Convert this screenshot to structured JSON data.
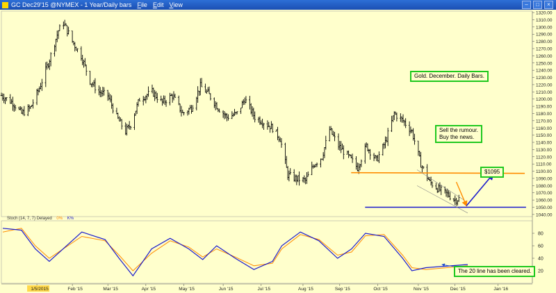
{
  "titlebar": {
    "title": "GC Dec29'15 @NYMEX - 1 Year/Daily bars",
    "menu": [
      "File",
      "Edit",
      "View"
    ],
    "bg": "#1b4fb3"
  },
  "indicator_header": {
    "text": "Stoch (14, 7, 7) Delayed",
    "k_label": "0%",
    "d_label": "K%"
  },
  "annotations": {
    "gold": "Gold. December. Daily Bars.",
    "sell_line1": "Sell the rumour.",
    "sell_line2": "Buy the news.",
    "price": "$1095",
    "cleared": "The 20 line has been cleared."
  },
  "colors": {
    "background": "#ffffcc",
    "bars": "#000000",
    "orange_line": "#ff8c00",
    "blue_line": "#1a1acc",
    "note_border": "#1ec81e",
    "k_line": "#1a1acc",
    "d_line": "#ff8c00"
  },
  "chart_data": {
    "type": "ohlc",
    "price_ylim": [
      1037,
      1322
    ],
    "price_ticks": [
      1040,
      1050,
      1060,
      1070,
      1080,
      1090,
      1100,
      1110,
      1120,
      1130,
      1140,
      1150,
      1160,
      1170,
      1180,
      1190,
      1200,
      1210,
      1220,
      1230,
      1240,
      1250,
      1260,
      1270,
      1280,
      1290,
      1300,
      1310,
      1320
    ],
    "x_labels": [
      "1/5/2015",
      "Feb '15",
      "Mar '15",
      "Apr '15",
      "May '15",
      "Jun '15",
      "Jul '15",
      "Aug '15",
      "Sep '15",
      "Oct '15",
      "Nov '15",
      "Dec '15",
      "Jan '16"
    ],
    "x_range": [
      "2014-12-08",
      "2016-01-31"
    ],
    "series_close": [
      [
        "2014-12-08",
        1205
      ],
      [
        "2014-12-17",
        1195
      ],
      [
        "2014-12-24",
        1180
      ],
      [
        "2014-12-31",
        1188
      ],
      [
        "2015-01-07",
        1215
      ],
      [
        "2015-01-15",
        1255
      ],
      [
        "2015-01-22",
        1295
      ],
      [
        "2015-01-26",
        1306
      ],
      [
        "2015-02-02",
        1280
      ],
      [
        "2015-02-09",
        1260
      ],
      [
        "2015-02-16",
        1225
      ],
      [
        "2015-02-23",
        1210
      ],
      [
        "2015-03-02",
        1205
      ],
      [
        "2015-03-09",
        1175
      ],
      [
        "2015-03-16",
        1155
      ],
      [
        "2015-03-20",
        1165
      ],
      [
        "2015-03-27",
        1200
      ],
      [
        "2015-04-06",
        1210
      ],
      [
        "2015-04-14",
        1195
      ],
      [
        "2015-04-22",
        1205
      ],
      [
        "2015-04-30",
        1180
      ],
      [
        "2015-05-07",
        1188
      ],
      [
        "2015-05-14",
        1218
      ],
      [
        "2015-05-20",
        1208
      ],
      [
        "2015-05-28",
        1188
      ],
      [
        "2015-06-04",
        1175
      ],
      [
        "2015-06-12",
        1180
      ],
      [
        "2015-06-18",
        1200
      ],
      [
        "2015-06-26",
        1175
      ],
      [
        "2015-07-03",
        1168
      ],
      [
        "2015-07-10",
        1160
      ],
      [
        "2015-07-16",
        1145
      ],
      [
        "2015-07-22",
        1095
      ],
      [
        "2015-07-28",
        1090
      ],
      [
        "2015-08-05",
        1087
      ],
      [
        "2015-08-12",
        1110
      ],
      [
        "2015-08-18",
        1120
      ],
      [
        "2015-08-24",
        1158
      ],
      [
        "2015-08-31",
        1135
      ],
      [
        "2015-09-08",
        1120
      ],
      [
        "2015-09-15",
        1105
      ],
      [
        "2015-09-22",
        1135
      ],
      [
        "2015-09-30",
        1115
      ],
      [
        "2015-10-07",
        1140
      ],
      [
        "2015-10-14",
        1180
      ],
      [
        "2015-10-21",
        1170
      ],
      [
        "2015-10-28",
        1155
      ],
      [
        "2015-11-04",
        1110
      ],
      [
        "2015-11-11",
        1085
      ],
      [
        "2015-11-18",
        1075
      ],
      [
        "2015-11-25",
        1068
      ],
      [
        "2015-12-01",
        1060
      ],
      [
        "2015-12-04",
        1062
      ]
    ],
    "lines": [
      {
        "name": "",
        "color": "#ff8c00",
        "from": [
          "2015-09-10",
          1098
        ],
        "to": [
          "2016-01-25",
          1097
        ]
      },
      {
        "name": "",
        "color": "#1a1acc",
        "from": [
          "2015-09-21",
          1050
        ],
        "to": [
          "2016-01-26",
          1050
        ]
      }
    ],
    "stoch_ylim": [
      0,
      100
    ],
    "stoch_ticks": [
      20,
      40,
      60,
      80
    ],
    "stoch_k": [
      [
        0,
        88
      ],
      [
        0.04,
        85
      ],
      [
        0.07,
        55
      ],
      [
        0.1,
        35
      ],
      [
        0.17,
        82
      ],
      [
        0.22,
        70
      ],
      [
        0.25,
        40
      ],
      [
        0.28,
        12
      ],
      [
        0.32,
        55
      ],
      [
        0.36,
        72
      ],
      [
        0.4,
        55
      ],
      [
        0.43,
        38
      ],
      [
        0.46,
        60
      ],
      [
        0.5,
        40
      ],
      [
        0.54,
        22
      ],
      [
        0.58,
        35
      ],
      [
        0.6,
        60
      ],
      [
        0.64,
        82
      ],
      [
        0.68,
        68
      ],
      [
        0.72,
        40
      ],
      [
        0.75,
        55
      ],
      [
        0.78,
        80
      ],
      [
        0.82,
        75
      ],
      [
        0.86,
        40
      ],
      [
        0.88,
        20
      ],
      [
        0.91,
        25
      ],
      [
        1,
        30
      ]
    ],
    "stoch_d": [
      [
        0,
        82
      ],
      [
        0.04,
        88
      ],
      [
        0.07,
        60
      ],
      [
        0.1,
        40
      ],
      [
        0.17,
        75
      ],
      [
        0.22,
        68
      ],
      [
        0.25,
        45
      ],
      [
        0.28,
        20
      ],
      [
        0.32,
        48
      ],
      [
        0.36,
        68
      ],
      [
        0.4,
        58
      ],
      [
        0.43,
        42
      ],
      [
        0.46,
        55
      ],
      [
        0.5,
        42
      ],
      [
        0.54,
        28
      ],
      [
        0.58,
        32
      ],
      [
        0.6,
        55
      ],
      [
        0.64,
        78
      ],
      [
        0.68,
        70
      ],
      [
        0.72,
        45
      ],
      [
        0.75,
        50
      ],
      [
        0.78,
        76
      ],
      [
        0.82,
        78
      ],
      [
        0.86,
        45
      ],
      [
        0.88,
        25
      ],
      [
        0.91,
        22
      ],
      [
        1,
        28
      ]
    ]
  }
}
